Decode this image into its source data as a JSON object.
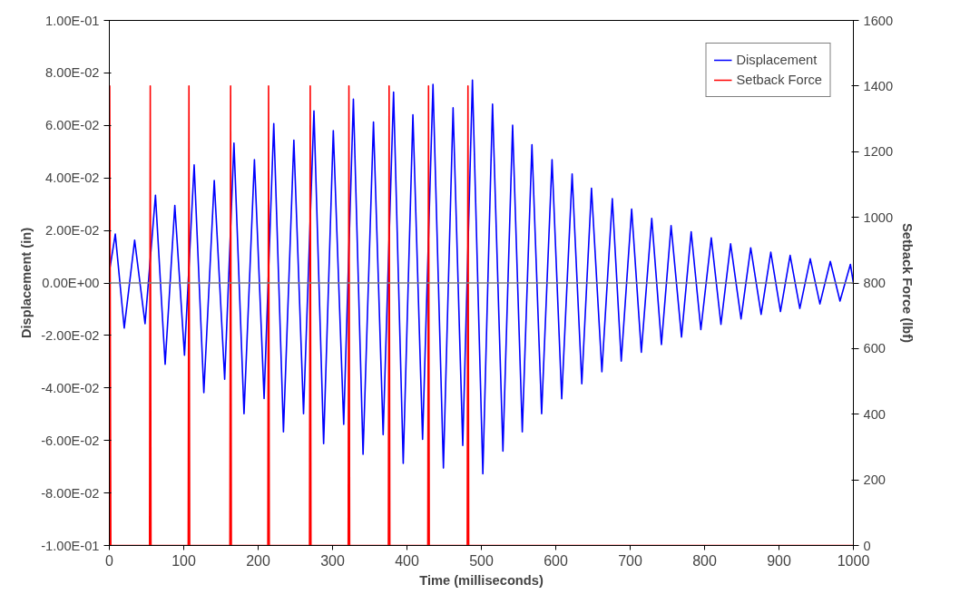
{
  "chart_data": {
    "type": "line",
    "xlabel": "Time (milliseconds)",
    "ylabel": "Displacement (in)",
    "y2label": "Setback Force (lbf)",
    "xlim": [
      0,
      1000
    ],
    "xticks": [
      0,
      100,
      200,
      300,
      400,
      500,
      600,
      700,
      800,
      900,
      1000
    ],
    "ylim": [
      -0.1,
      0.1
    ],
    "yticks": [
      {
        "value": -0.1,
        "label": "-1.00E-01"
      },
      {
        "value": -0.08,
        "label": "-8.00E-02"
      },
      {
        "value": -0.06,
        "label": "-6.00E-02"
      },
      {
        "value": -0.04,
        "label": "-4.00E-02"
      },
      {
        "value": -0.02,
        "label": "-2.00E-02"
      },
      {
        "value": 0,
        "label": "0.00E+00"
      },
      {
        "value": 0.02,
        "label": "2.00E-02"
      },
      {
        "value": 0.04,
        "label": "4.00E-02"
      },
      {
        "value": 0.06,
        "label": "6.00E-02"
      },
      {
        "value": 0.08,
        "label": "8.00E-02"
      },
      {
        "value": 0.1,
        "label": "1.00E-01"
      }
    ],
    "y2lim": [
      0,
      1600
    ],
    "y2ticks": [
      0,
      200,
      400,
      600,
      800,
      1000,
      1200,
      1400,
      1600
    ],
    "ref_lines": [
      {
        "axis": "y",
        "value": 0,
        "color": "#808080"
      }
    ],
    "grid": false,
    "legend": "top right",
    "marker": "none",
    "line_style": "solid",
    "series": [
      {
        "name": "Displacement",
        "color": "#0000ff",
        "x": [
          1,
          8,
          20,
          34,
          48,
          62,
          75,
          88,
          101,
          114,
          127,
          141,
          155,
          167.5,
          181,
          195,
          208,
          221,
          234,
          248,
          261,
          275,
          288,
          301,
          315,
          328,
          341,
          355,
          368,
          382,
          395,
          408,
          421,
          435,
          449,
          462,
          475,
          488,
          502,
          515,
          529,
          542,
          555,
          568,
          581,
          595,
          608,
          622,
          635,
          648,
          662,
          676,
          688,
          702,
          715,
          729,
          742,
          755,
          769,
          782,
          795,
          809,
          822,
          835,
          849,
          862,
          876,
          889,
          902,
          915,
          928,
          942,
          955,
          969,
          982,
          996,
          1000
        ],
        "values": [
          0.006,
          0.0186,
          -0.0172,
          0.0163,
          -0.0155,
          0.0334,
          -0.031,
          0.0295,
          -0.0275,
          0.045,
          -0.0418,
          0.039,
          -0.0367,
          0.0533,
          -0.0498,
          0.047,
          -0.044,
          0.0607,
          -0.0567,
          0.0544,
          -0.0498,
          0.0655,
          -0.0612,
          0.058,
          -0.0539,
          0.07,
          -0.0653,
          0.0613,
          -0.0578,
          0.0727,
          -0.0687,
          0.0641,
          -0.0596,
          0.0756,
          -0.0705,
          0.0667,
          -0.0619,
          0.0773,
          -0.0727,
          0.0681,
          -0.0641,
          0.0601,
          -0.0567,
          0.0527,
          -0.0498,
          0.047,
          -0.0441,
          0.0415,
          -0.0384,
          0.0361,
          -0.0338,
          0.0321,
          -0.0298,
          0.0281,
          -0.0264,
          0.0246,
          -0.0235,
          0.0218,
          -0.0206,
          0.0195,
          -0.0178,
          0.0172,
          -0.0158,
          0.0149,
          -0.0137,
          0.0134,
          -0.012,
          0.0117,
          -0.0109,
          0.0105,
          -0.0097,
          0.0092,
          -0.008,
          0.0082,
          -0.0069,
          0.0071,
          0.0
        ]
      },
      {
        "name": "Setback Force",
        "color": "#ff0000",
        "axis": "y2",
        "x": [
          0,
          0.5,
          2,
          54,
          55,
          56,
          106,
          107,
          108,
          162,
          163,
          164,
          213,
          214,
          215,
          269,
          270,
          271,
          321,
          322,
          323,
          375,
          376,
          377,
          428,
          429,
          430,
          481,
          482,
          483,
          1000
        ],
        "values": [
          0,
          1400,
          0,
          0,
          1400,
          0,
          0,
          1400,
          0,
          0,
          1400,
          0,
          0,
          1400,
          0,
          0,
          1400,
          0,
          0,
          1400,
          0,
          0,
          1400,
          0,
          0,
          1400,
          0,
          0,
          1400,
          0,
          0
        ]
      }
    ]
  }
}
